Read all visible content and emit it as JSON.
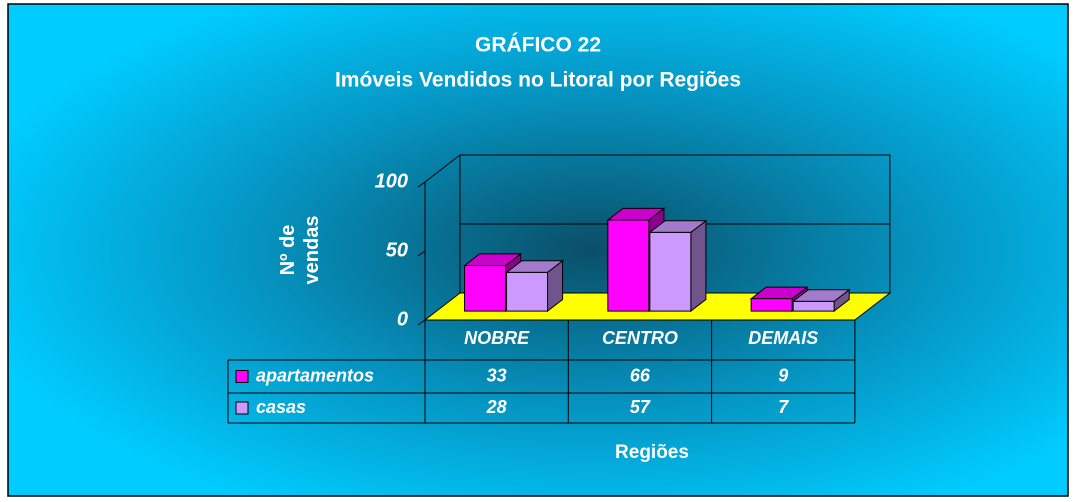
{
  "chart_data": {
    "type": "bar3d",
    "title": "GRÁFICO 22",
    "subtitle": "Imóveis Vendidos no Litoral por Regiões",
    "y_label": "Nº de vendas",
    "x_label": "Regiões",
    "categories": [
      "NOBRE",
      "CENTRO",
      "DEMAIS"
    ],
    "series": [
      {
        "name": "apartamentos",
        "color": "#ff00ff",
        "values": [
          33,
          66,
          9
        ]
      },
      {
        "name": "casas",
        "color": "#cc99ff",
        "values": [
          28,
          57,
          7
        ]
      }
    ],
    "ylim": [
      0,
      100
    ],
    "yticks": [
      0,
      50,
      100
    ],
    "grid": true,
    "floor_color": "#ffff00"
  }
}
